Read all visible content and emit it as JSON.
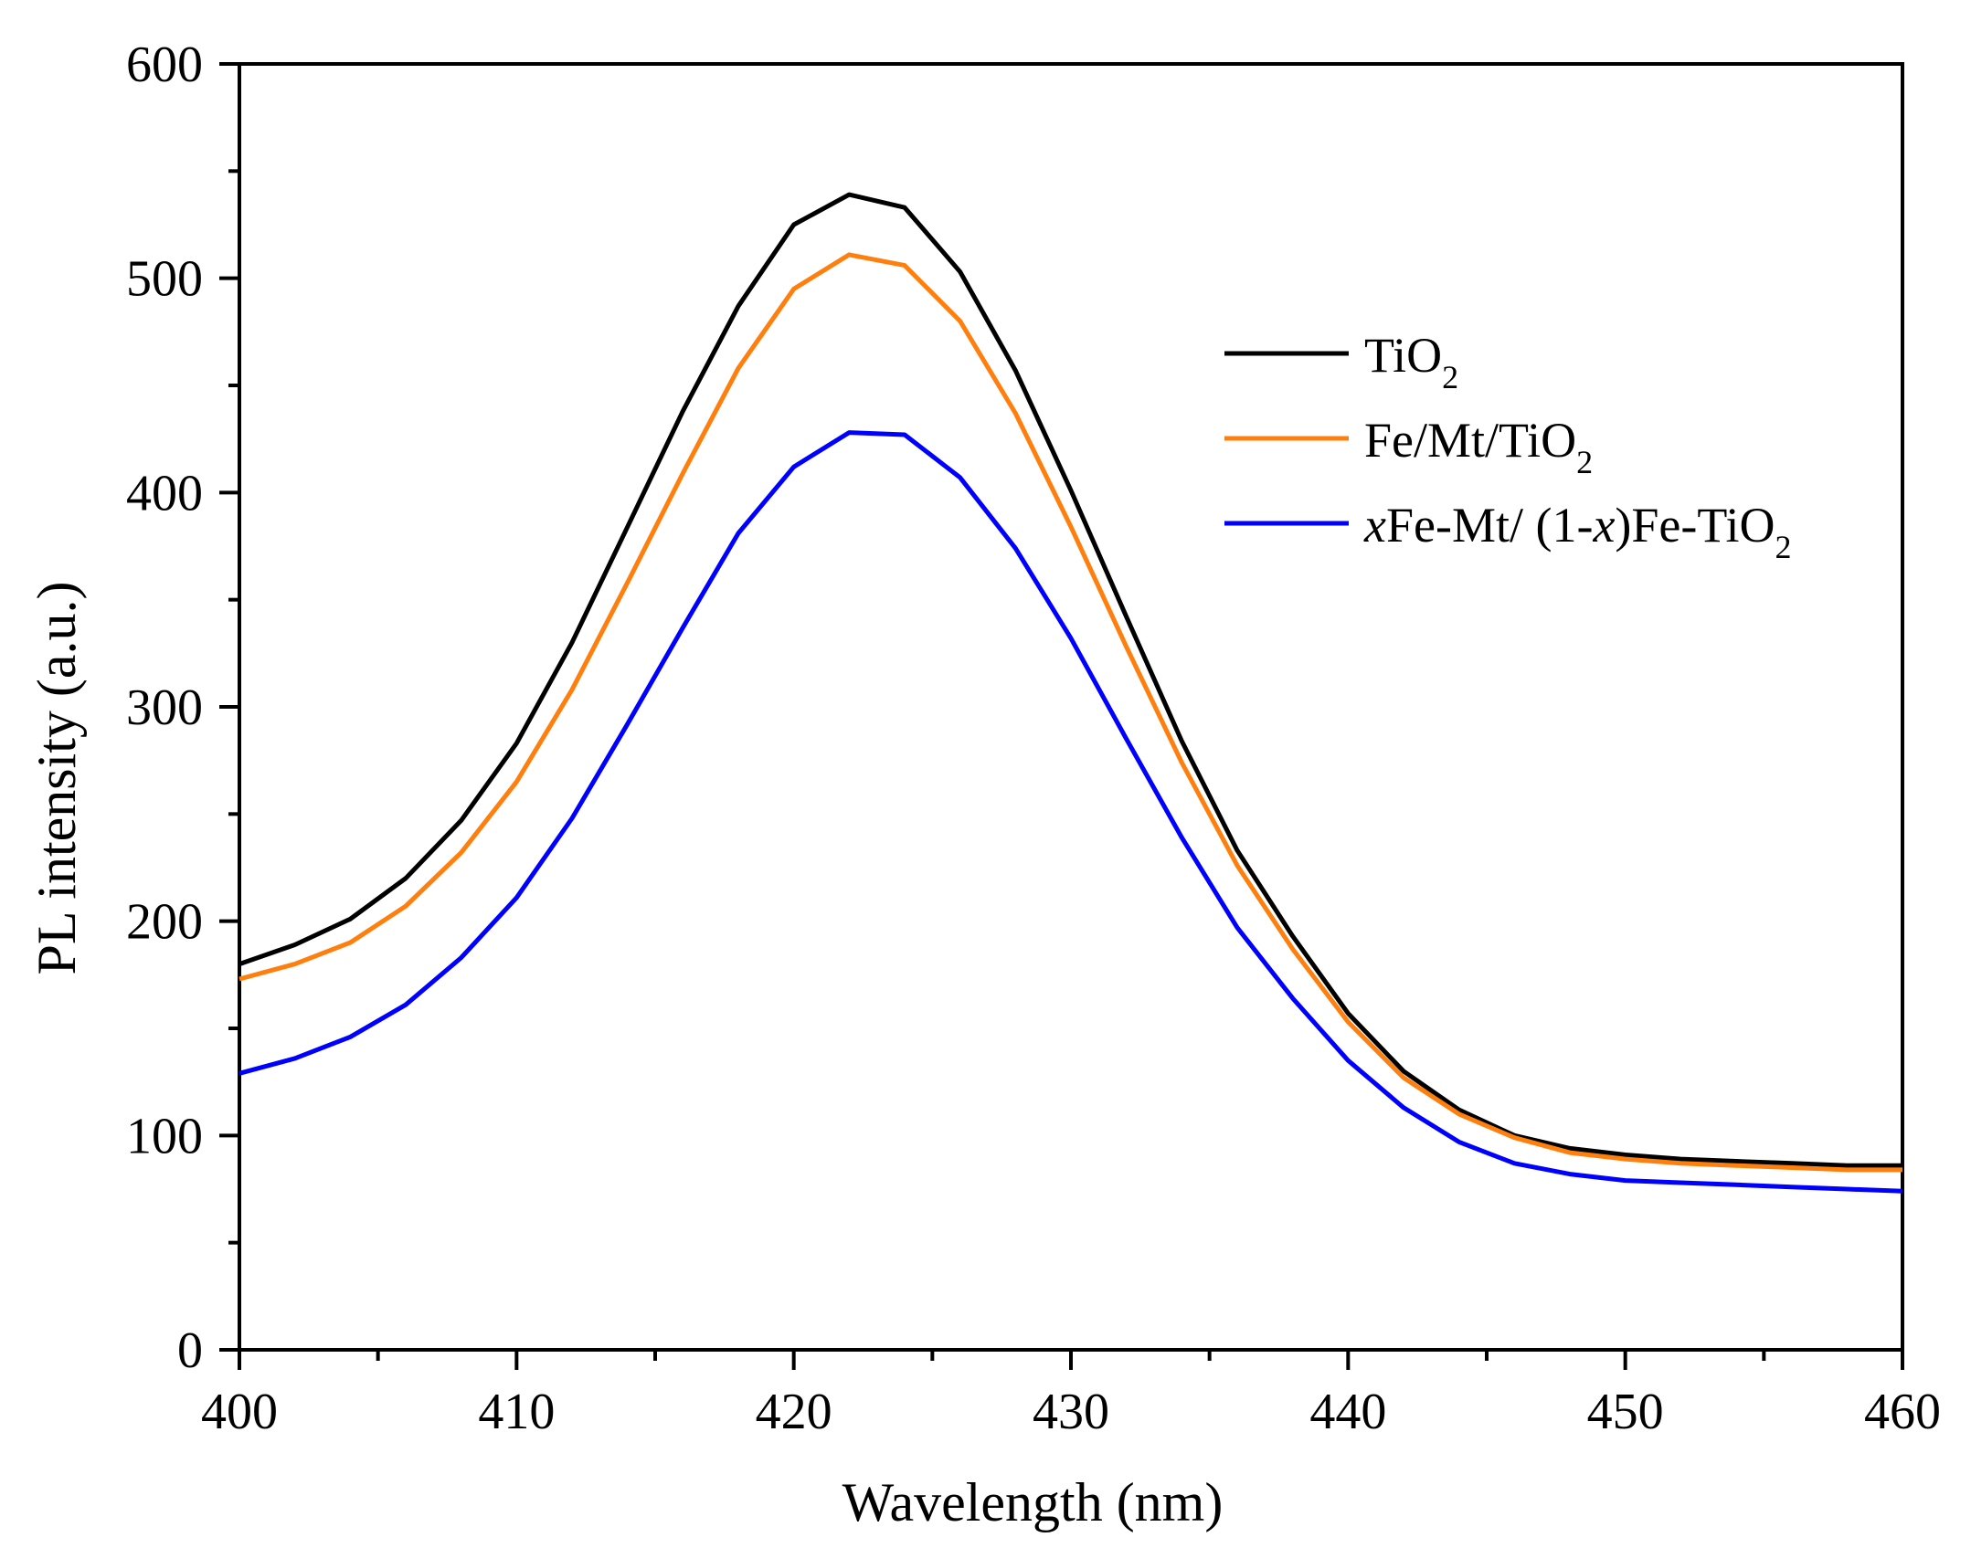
{
  "chart_data": {
    "type": "line",
    "title": "",
    "xlabel": "Wavelength (nm)",
    "ylabel": "PL intensity (a.u.)",
    "xlim": [
      400,
      460
    ],
    "ylim": [
      0,
      600
    ],
    "xticks": [
      400,
      410,
      420,
      430,
      440,
      450,
      460
    ],
    "yticks": [
      0,
      100,
      200,
      300,
      400,
      500,
      600
    ],
    "xtick_labels": [
      "400",
      "410",
      "420",
      "430",
      "440",
      "450",
      "460"
    ],
    "ytick_labels": [
      "0",
      "100",
      "200",
      "300",
      "400",
      "500",
      "600"
    ],
    "grid": false,
    "legend_position": "top-right",
    "x": [
      400,
      402,
      404,
      406,
      408,
      410,
      412,
      414,
      416,
      418,
      420,
      422,
      424,
      426,
      428,
      430,
      432,
      434,
      436,
      438,
      440,
      442,
      444,
      446,
      448,
      450,
      452,
      454,
      456,
      458,
      460
    ],
    "series": [
      {
        "name": "TiO2",
        "legend_parts": {
          "main": "TiO",
          "sub": "2"
        },
        "color": "#000000",
        "values": [
          180,
          189,
          201,
          220,
          247,
          283,
          330,
          384,
          438,
          487,
          525,
          539,
          533,
          503,
          457,
          401,
          342,
          284,
          233,
          193,
          157,
          130,
          112,
          100,
          94,
          91,
          89,
          88,
          87,
          86,
          86
        ]
      },
      {
        "name": "Fe/Mt/TiO2",
        "legend_parts": {
          "main": "Fe/Mt/TiO",
          "sub": "2"
        },
        "color": "#ff7f0e",
        "values": [
          173,
          180,
          190,
          207,
          232,
          265,
          308,
          358,
          409,
          458,
          495,
          511,
          506,
          480,
          437,
          384,
          328,
          274,
          226,
          187,
          153,
          127,
          110,
          99,
          92,
          89,
          87,
          86,
          85,
          84,
          84
        ]
      },
      {
        "name": "xFe-Mt/ (1-x)Fe-TiO2",
        "legend_parts": {
          "x1": "x",
          "a": "Fe-Mt/ (1-",
          "x2": "x",
          "b": ")Fe-TiO",
          "sub": "2"
        },
        "color": "#0000ff",
        "values": [
          129,
          136,
          146,
          161,
          183,
          211,
          248,
          292,
          337,
          381,
          412,
          428,
          427,
          407,
          374,
          332,
          285,
          239,
          197,
          164,
          135,
          113,
          97,
          87,
          82,
          79,
          78,
          77,
          76,
          75,
          74
        ]
      }
    ]
  }
}
